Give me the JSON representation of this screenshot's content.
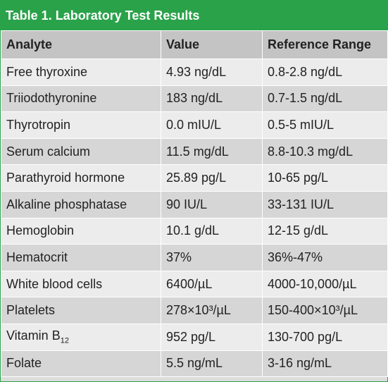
{
  "caption": "Table 1. Laboratory Test Results",
  "headers": [
    "Analyte",
    "Value",
    "Reference Range"
  ],
  "rows": [
    [
      "Free thyroxine",
      "4.93 ng/dL",
      "0.8-2.8 ng/dL"
    ],
    [
      "Triiodothyronine",
      "183 ng/dL",
      "0.7-1.5 ng/dL"
    ],
    [
      "Thyrotropin",
      "0.0 mIU/L",
      "0.5-5 mIU/L"
    ],
    [
      "Serum calcium",
      "11.5 mg/dL",
      "8.8-10.3 mg/dL"
    ],
    [
      "Parathyroid hormone",
      "25.89 pg/L",
      "10-65 pg/L"
    ],
    [
      "Alkaline phosphatase",
      "90 IU/L",
      "33-131 IU/L"
    ],
    [
      "Hemoglobin",
      "10.1 g/dL",
      "12-15 g/dL"
    ],
    [
      "Hematocrit",
      "37%",
      "36%-47%"
    ],
    [
      "White blood cells",
      "6400/µL",
      "4000-10,000/µL"
    ],
    [
      "Platelets",
      "278×10³/µL",
      "150-400×10³/µL"
    ],
    [
      "Vitamin B",
      "952 pg/L",
      "130-700 pg/L"
    ],
    [
      "Folate",
      "5.5 ng/mL",
      "3-16 ng/mL"
    ]
  ],
  "vitamin_subscript": "12"
}
